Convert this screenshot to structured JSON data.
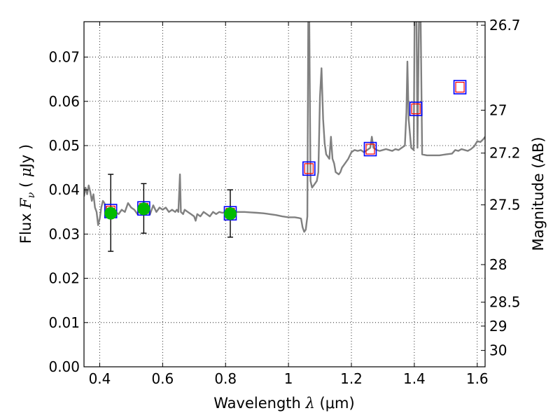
{
  "chart_data": {
    "type": "line",
    "xlabel_prefix": "Wavelength  ",
    "xlabel_symbol": "λ",
    "xlabel_unit": " (μm)",
    "ylabel_prefix": "Flux  ",
    "ylabel_symbol": "F",
    "ylabel_sub": "ν",
    "ylabel_unit_open": "  ( ",
    "ylabel_unit_mu": "μ",
    "ylabel_unit_rest": "Jy )",
    "ylabel_right": "Magnitude (AB)",
    "xlim": [
      0.35,
      1.625
    ],
    "ylim": [
      0.0,
      0.078
    ],
    "grid": true,
    "x_ticks": [
      0.4,
      0.6,
      0.8,
      1.0,
      1.2,
      1.4,
      1.6
    ],
    "x_tick_labels": [
      "0.4",
      "0.6",
      "0.8",
      "1",
      "1.2",
      "1.4",
      "1.6"
    ],
    "y_ticks": [
      0.0,
      0.01,
      0.02,
      0.03,
      0.04,
      0.05,
      0.06,
      0.07
    ],
    "y_tick_labels": [
      "0.00",
      "0.01",
      "0.02",
      "0.03",
      "0.04",
      "0.05",
      "0.06",
      "0.07"
    ],
    "right_ticks": [
      {
        "label": "26.7",
        "flux": 0.0772
      },
      {
        "label": "27",
        "flux": 0.058
      },
      {
        "label": "27.2",
        "flux": 0.0483
      },
      {
        "label": "27.5",
        "flux": 0.0366
      },
      {
        "label": "28",
        "flux": 0.0231
      },
      {
        "label": "28.5",
        "flux": 0.0146
      },
      {
        "label": "29",
        "flux": 0.0092
      },
      {
        "label": "30",
        "flux": 0.0037
      }
    ],
    "series": [
      {
        "name": "model-spectrum",
        "color": "#808080",
        "points": [
          [
            0.35,
            0.0385
          ],
          [
            0.355,
            0.0405
          ],
          [
            0.36,
            0.039
          ],
          [
            0.365,
            0.041
          ],
          [
            0.37,
            0.0395
          ],
          [
            0.375,
            0.0375
          ],
          [
            0.38,
            0.039
          ],
          [
            0.385,
            0.036
          ],
          [
            0.39,
            0.035
          ],
          [
            0.395,
            0.032
          ],
          [
            0.4,
            0.0335
          ],
          [
            0.405,
            0.036
          ],
          [
            0.41,
            0.0375
          ],
          [
            0.415,
            0.037
          ],
          [
            0.42,
            0.0355
          ],
          [
            0.43,
            0.035
          ],
          [
            0.44,
            0.0345
          ],
          [
            0.45,
            0.035
          ],
          [
            0.46,
            0.0345
          ],
          [
            0.47,
            0.0355
          ],
          [
            0.48,
            0.035
          ],
          [
            0.49,
            0.037
          ],
          [
            0.5,
            0.036
          ],
          [
            0.51,
            0.0355
          ],
          [
            0.52,
            0.0345
          ],
          [
            0.53,
            0.036
          ],
          [
            0.54,
            0.0355
          ],
          [
            0.55,
            0.035
          ],
          [
            0.56,
            0.0345
          ],
          [
            0.57,
            0.0365
          ],
          [
            0.58,
            0.035
          ],
          [
            0.59,
            0.036
          ],
          [
            0.6,
            0.0355
          ],
          [
            0.61,
            0.036
          ],
          [
            0.62,
            0.035
          ],
          [
            0.63,
            0.0355
          ],
          [
            0.64,
            0.035
          ],
          [
            0.645,
            0.0355
          ],
          [
            0.65,
            0.035
          ],
          [
            0.655,
            0.0435
          ],
          [
            0.658,
            0.035
          ],
          [
            0.665,
            0.0345
          ],
          [
            0.67,
            0.0355
          ],
          [
            0.68,
            0.035
          ],
          [
            0.69,
            0.0345
          ],
          [
            0.7,
            0.034
          ],
          [
            0.705,
            0.033
          ],
          [
            0.71,
            0.0345
          ],
          [
            0.72,
            0.034
          ],
          [
            0.73,
            0.035
          ],
          [
            0.74,
            0.0345
          ],
          [
            0.75,
            0.034
          ],
          [
            0.76,
            0.035
          ],
          [
            0.77,
            0.0345
          ],
          [
            0.78,
            0.035
          ],
          [
            0.79,
            0.0348
          ],
          [
            0.8,
            0.035
          ],
          [
            0.82,
            0.035
          ],
          [
            0.84,
            0.035
          ],
          [
            0.86,
            0.035
          ],
          [
            0.88,
            0.0349
          ],
          [
            0.9,
            0.0348
          ],
          [
            0.92,
            0.0347
          ],
          [
            0.94,
            0.0345
          ],
          [
            0.96,
            0.0343
          ],
          [
            0.98,
            0.034
          ],
          [
            1.0,
            0.0338
          ],
          [
            1.02,
            0.0338
          ],
          [
            1.035,
            0.0336
          ],
          [
            1.04,
            0.0335
          ],
          [
            1.045,
            0.0315
          ],
          [
            1.05,
            0.0305
          ],
          [
            1.055,
            0.031
          ],
          [
            1.06,
            0.034
          ],
          [
            1.063,
            0.079
          ],
          [
            1.066,
            0.079
          ],
          [
            1.07,
            0.042
          ],
          [
            1.075,
            0.0405
          ],
          [
            1.08,
            0.041
          ],
          [
            1.09,
            0.042
          ],
          [
            1.095,
            0.044
          ],
          [
            1.1,
            0.061
          ],
          [
            1.105,
            0.0675
          ],
          [
            1.11,
            0.056
          ],
          [
            1.115,
            0.0505
          ],
          [
            1.12,
            0.048
          ],
          [
            1.13,
            0.047
          ],
          [
            1.135,
            0.052
          ],
          [
            1.14,
            0.047
          ],
          [
            1.145,
            0.046
          ],
          [
            1.15,
            0.044
          ],
          [
            1.16,
            0.0435
          ],
          [
            1.165,
            0.044
          ],
          [
            1.17,
            0.045
          ],
          [
            1.18,
            0.046
          ],
          [
            1.19,
            0.047
          ],
          [
            1.2,
            0.0485
          ],
          [
            1.21,
            0.049
          ],
          [
            1.22,
            0.0488
          ],
          [
            1.23,
            0.049
          ],
          [
            1.24,
            0.0485
          ],
          [
            1.25,
            0.049
          ],
          [
            1.26,
            0.0495
          ],
          [
            1.265,
            0.052
          ],
          [
            1.27,
            0.0495
          ],
          [
            1.28,
            0.049
          ],
          [
            1.29,
            0.0488
          ],
          [
            1.3,
            0.049
          ],
          [
            1.31,
            0.0492
          ],
          [
            1.32,
            0.049
          ],
          [
            1.33,
            0.0488
          ],
          [
            1.34,
            0.0492
          ],
          [
            1.35,
            0.049
          ],
          [
            1.36,
            0.0495
          ],
          [
            1.37,
            0.05
          ],
          [
            1.375,
            0.0575
          ],
          [
            1.378,
            0.069
          ],
          [
            1.382,
            0.056
          ],
          [
            1.39,
            0.0495
          ],
          [
            1.398,
            0.049
          ],
          [
            1.401,
            0.079
          ],
          [
            1.407,
            0.079
          ],
          [
            1.41,
            0.0495
          ],
          [
            1.415,
            0.079
          ],
          [
            1.42,
            0.079
          ],
          [
            1.425,
            0.048
          ],
          [
            1.44,
            0.0478
          ],
          [
            1.46,
            0.0478
          ],
          [
            1.48,
            0.0478
          ],
          [
            1.5,
            0.048
          ],
          [
            1.52,
            0.0482
          ],
          [
            1.53,
            0.049
          ],
          [
            1.54,
            0.0488
          ],
          [
            1.55,
            0.0492
          ],
          [
            1.56,
            0.049
          ],
          [
            1.57,
            0.0488
          ],
          [
            1.58,
            0.0492
          ],
          [
            1.59,
            0.0498
          ],
          [
            1.6,
            0.051
          ],
          [
            1.61,
            0.0508
          ],
          [
            1.62,
            0.0515
          ],
          [
            1.625,
            0.052
          ]
        ]
      }
    ],
    "model_photometry": {
      "name": "model-magnitudes",
      "colors": {
        "outer": "#0000ff",
        "inner": "#ff0000"
      },
      "points": [
        {
          "x": 0.435,
          "y": 0.0352
        },
        {
          "x": 0.54,
          "y": 0.0358
        },
        {
          "x": 0.815,
          "y": 0.0347
        },
        {
          "x": 1.065,
          "y": 0.0448
        },
        {
          "x": 1.26,
          "y": 0.0492
        },
        {
          "x": 1.405,
          "y": 0.0583
        },
        {
          "x": 1.545,
          "y": 0.0632
        }
      ]
    },
    "observed": {
      "name": "observed-flux",
      "color": "#00bb00",
      "points": [
        {
          "x": 0.435,
          "y": 0.0347,
          "ylo": 0.0261,
          "yhi": 0.0435
        },
        {
          "x": 0.54,
          "y": 0.0357,
          "ylo": 0.0302,
          "yhi": 0.0414
        },
        {
          "x": 0.815,
          "y": 0.0346,
          "ylo": 0.0293,
          "yhi": 0.04
        }
      ]
    }
  }
}
